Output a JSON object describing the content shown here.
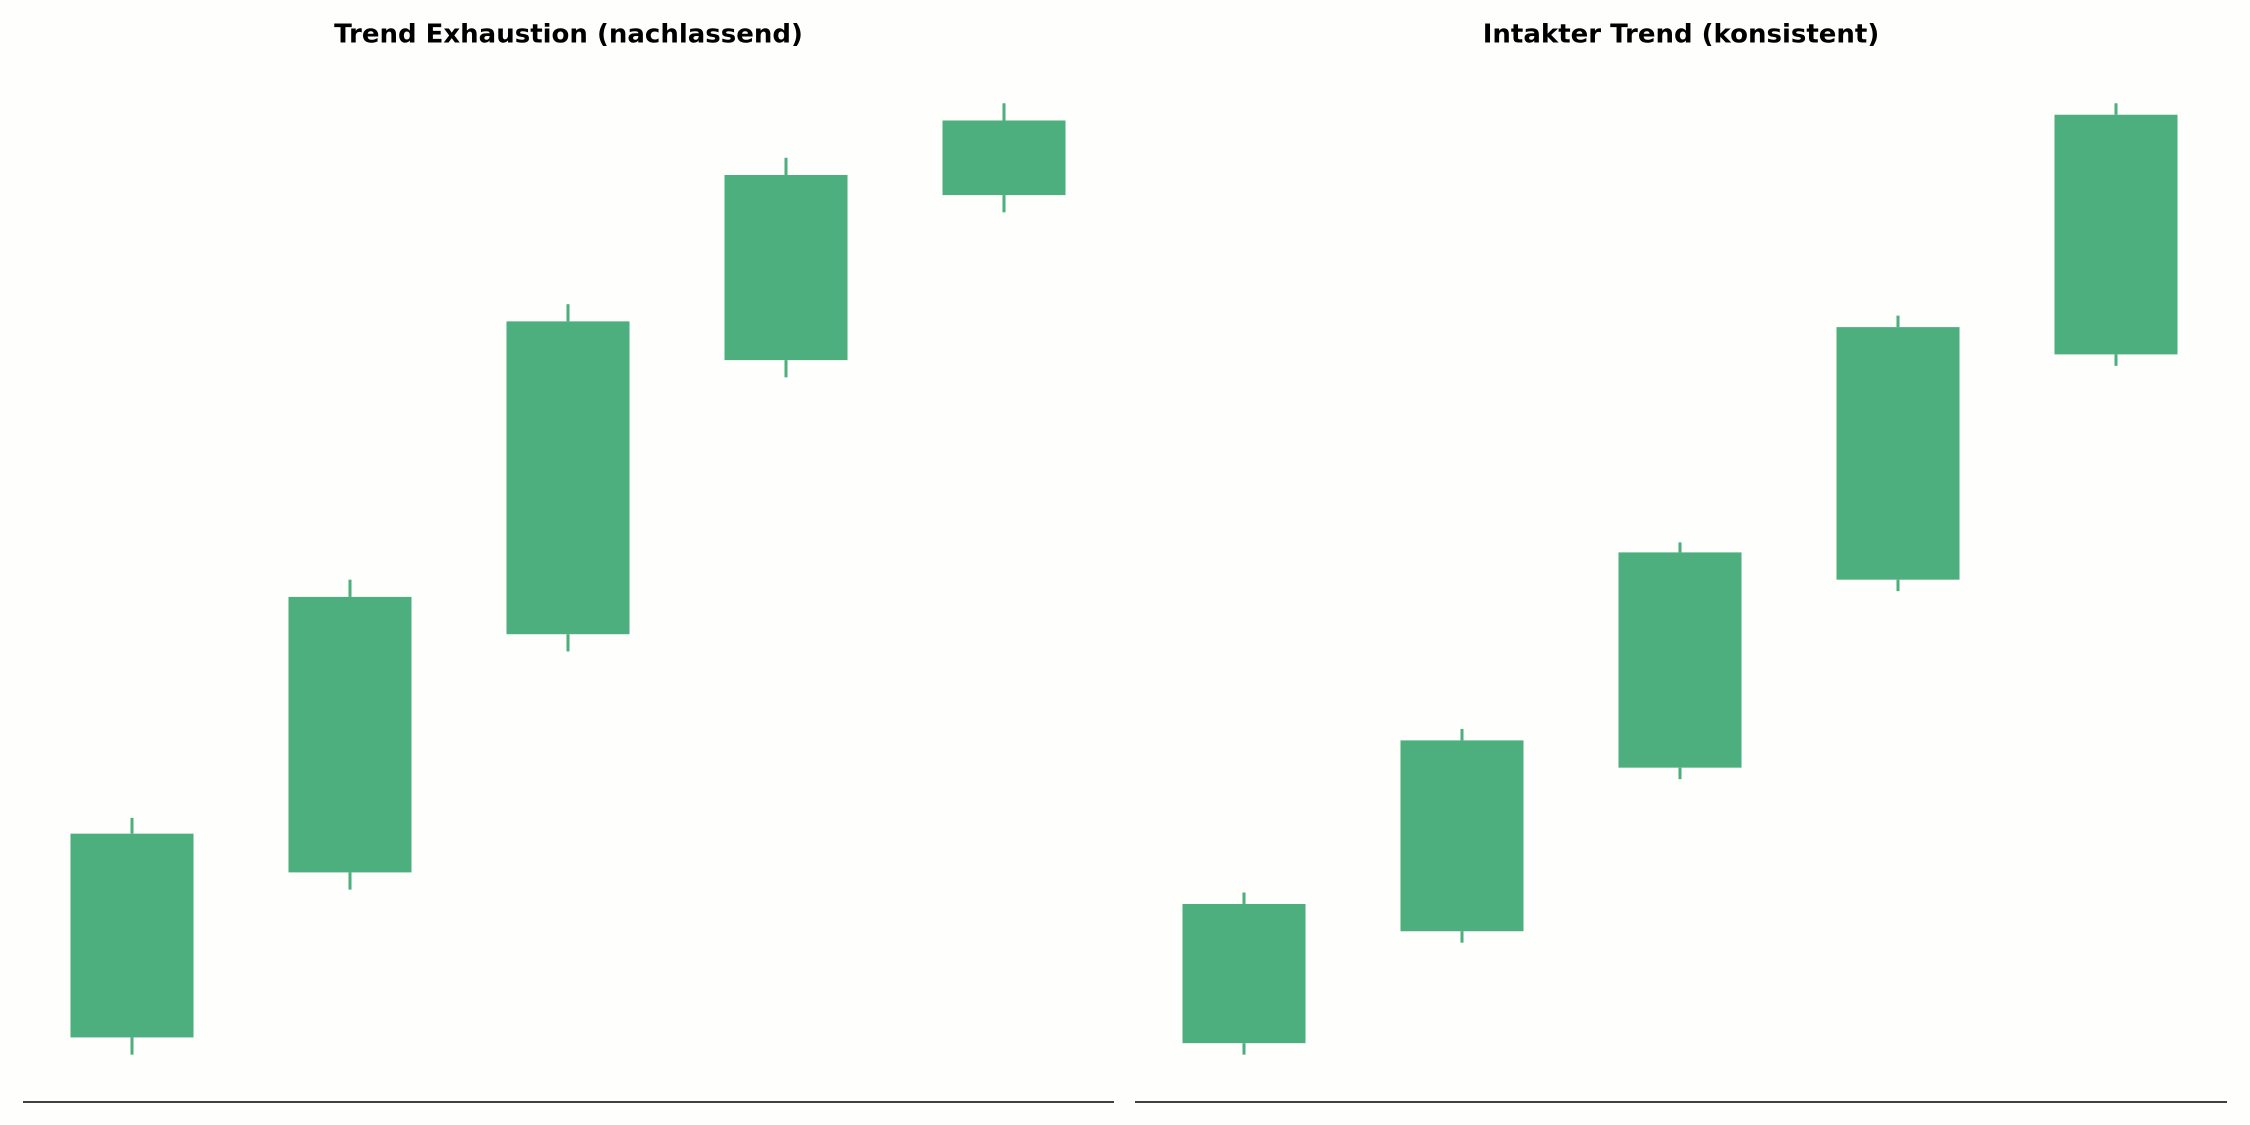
{
  "chart_data": [
    {
      "type": "candlestick",
      "title": "Trend Exhaustion (nachlassend)",
      "color": "#4caf7d",
      "open": [
        4.5,
        16.0,
        32.6,
        51.7,
        63.2
      ],
      "high": [
        19.8,
        36.4,
        55.6,
        65.8,
        69.6
      ],
      "low": [
        3.3,
        14.8,
        31.4,
        50.5,
        62.0
      ],
      "close": [
        18.7,
        35.2,
        54.4,
        64.6,
        68.4
      ],
      "ylim": [
        0,
        71.5
      ]
    },
    {
      "type": "candlestick",
      "title": "Intakter Trend (konsistent)",
      "color": "#4caf7d",
      "open": [
        4.1,
        11.9,
        23.3,
        36.4,
        52.1
      ],
      "high": [
        14.6,
        26.0,
        39.0,
        54.8,
        69.6
      ],
      "low": [
        3.3,
        11.1,
        22.5,
        35.6,
        51.3
      ],
      "close": [
        13.8,
        25.2,
        38.3,
        54.0,
        68.8
      ],
      "ylim": [
        0,
        71.5
      ]
    }
  ]
}
